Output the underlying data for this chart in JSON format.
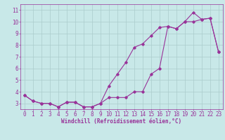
{
  "title": "",
  "xlabel": "Windchill (Refroidissement éolien,°C)",
  "ylabel": "",
  "bg_color": "#c8e8e8",
  "line_color": "#993399",
  "grid_color": "#aacccc",
  "xlim": [
    -0.5,
    23.5
  ],
  "ylim": [
    2.5,
    11.5
  ],
  "xticks": [
    0,
    1,
    2,
    3,
    4,
    5,
    6,
    7,
    8,
    9,
    10,
    11,
    12,
    13,
    14,
    15,
    16,
    17,
    18,
    19,
    20,
    21,
    22,
    23
  ],
  "yticks": [
    3,
    4,
    5,
    6,
    7,
    8,
    9,
    10,
    11
  ],
  "line1_x": [
    0,
    1,
    2,
    3,
    4,
    5,
    6,
    7,
    8,
    9,
    10,
    11,
    12,
    13,
    14,
    15,
    16,
    17,
    18,
    19,
    20,
    21,
    22,
    23
  ],
  "line1_y": [
    3.7,
    3.2,
    3.0,
    3.0,
    2.7,
    3.1,
    3.1,
    2.7,
    2.7,
    3.0,
    3.5,
    3.5,
    3.5,
    4.0,
    4.0,
    5.5,
    6.0,
    9.6,
    9.4,
    10.0,
    10.0,
    10.2,
    10.3,
    7.4
  ],
  "line2_x": [
    0,
    1,
    2,
    3,
    4,
    5,
    6,
    7,
    8,
    9,
    10,
    11,
    12,
    13,
    14,
    15,
    16,
    17,
    18,
    19,
    20,
    21,
    22,
    23
  ],
  "line2_y": [
    3.7,
    3.2,
    3.0,
    3.0,
    2.7,
    3.1,
    3.1,
    2.7,
    2.7,
    3.0,
    4.5,
    5.5,
    6.5,
    7.8,
    8.1,
    8.8,
    9.5,
    9.6,
    9.4,
    10.0,
    10.8,
    10.2,
    10.3,
    7.4
  ],
  "marker": "D",
  "marker_size": 1.8,
  "line_width": 0.8,
  "xlabel_fontsize": 5.5,
  "tick_fontsize": 5.5
}
